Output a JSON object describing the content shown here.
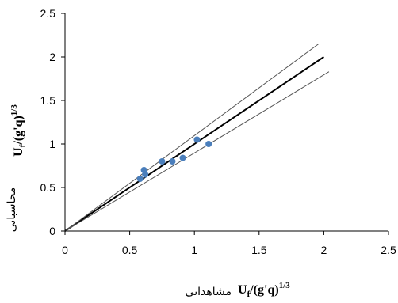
{
  "chart_data": {
    "type": "scatter",
    "xlim": [
      0,
      2.5
    ],
    "ylim": [
      0,
      2.5
    ],
    "x_ticks": [
      "0",
      "0.5",
      "1",
      "1.5",
      "2",
      "2.5"
    ],
    "y_ticks": [
      "0",
      "0.5",
      "1",
      "1.5",
      "2",
      "2.5"
    ],
    "xlabel": {
      "formula_base": "U",
      "formula_sub": "f",
      "formula_body": "/(g'q)",
      "formula_sup": "1/3",
      "persian": "مشاهداتی"
    },
    "ylabel": {
      "formula_base": "U",
      "formula_sub": "f",
      "formula_body": "/(g'q)",
      "formula_sup": "1/3",
      "persian": "محاسباتی"
    },
    "grid": false,
    "points": [
      {
        "x": 0.58,
        "y": 0.6
      },
      {
        "x": 0.61,
        "y": 0.7
      },
      {
        "x": 0.62,
        "y": 0.65
      },
      {
        "x": 0.75,
        "y": 0.8
      },
      {
        "x": 0.83,
        "y": 0.8
      },
      {
        "x": 0.91,
        "y": 0.84
      },
      {
        "x": 1.02,
        "y": 1.05
      },
      {
        "x": 1.11,
        "y": 1.0
      }
    ],
    "lines": [
      {
        "role": "1:1 line",
        "x": [
          0,
          2.0
        ],
        "y": [
          0,
          2.0
        ]
      },
      {
        "role": "upper bound",
        "x": [
          0,
          1.96
        ],
        "y": [
          0,
          2.15
        ]
      },
      {
        "role": "lower bound",
        "x": [
          0,
          2.04
        ],
        "y": [
          0,
          1.83
        ]
      }
    ],
    "colors": {
      "points": "#4a7ebb",
      "main_line": "#000000",
      "bound_lines": "#555555",
      "axes": "#000000"
    }
  }
}
